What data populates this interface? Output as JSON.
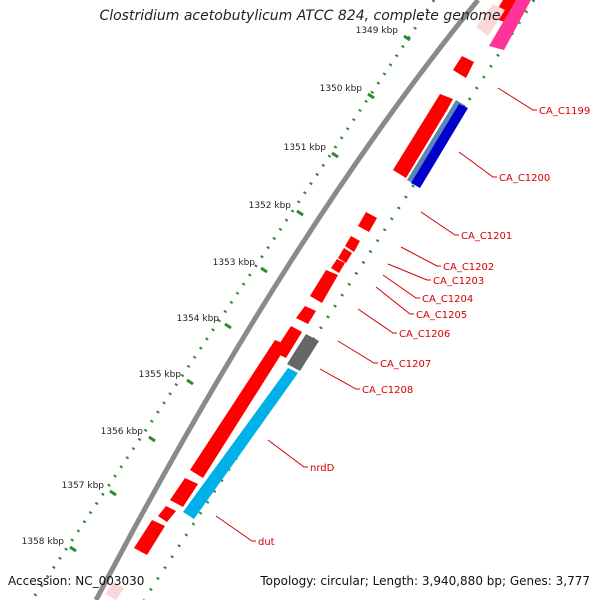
{
  "title": "Clostridium acetobutylicum ATCC 824, complete genome",
  "accession": "Accession: NC_003030",
  "topology": "Topology: circular; Length: 3,940,880 bp; Genes: 3,777",
  "colors": {
    "backbone": "#888888",
    "gene_red": "#ff0000",
    "gene_blue_dark": "#0000cc",
    "gene_blue_steel": "#5a86b5",
    "gene_cyan": "#00b0e8",
    "gene_gray": "#666666",
    "gene_pink": "#ff3399",
    "tick_green": "#2d8a2d",
    "label_red": "#d40000"
  },
  "ticks": [
    "1349 kbp",
    "1350 kbp",
    "1351 kbp",
    "1352 kbp",
    "1353 kbp",
    "1354 kbp",
    "1355 kbp",
    "1356 kbp",
    "1357 kbp",
    "1358 kbp"
  ],
  "gene_labels": [
    "CA_C1199",
    "CA_C1200",
    "CA_C1201",
    "CA_C1202",
    "CA_C1203",
    "CA_C1204",
    "CA_C1205",
    "CA_C1206",
    "CA_C1207",
    "CA_C1208",
    "nrdD",
    "dut"
  ]
}
